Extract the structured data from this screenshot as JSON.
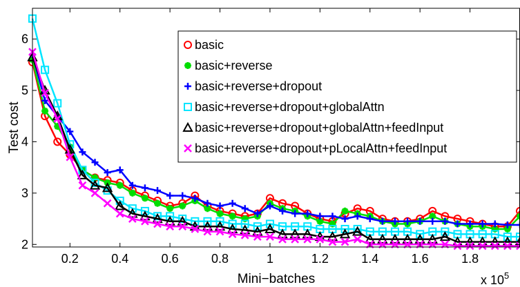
{
  "chart_data": {
    "type": "line",
    "xlabel": "Mini−batches",
    "ylabel": "Test cost",
    "x_multiplier_label": "x 10",
    "x_multiplier_exp": "5",
    "xlim": [
      0.05,
      2.0
    ],
    "ylim": [
      1.95,
      6.6
    ],
    "xticks": [
      0.2,
      0.4,
      0.6,
      0.8,
      1.0,
      1.2,
      1.4,
      1.6,
      1.8
    ],
    "xtick_labels": [
      "0.2",
      "0.4",
      "0.6",
      "0.8",
      "1",
      "1.2",
      "1.4",
      "1.6",
      "1.8"
    ],
    "yticks": [
      2,
      3,
      4,
      5,
      6
    ],
    "ytick_labels": [
      "2",
      "3",
      "4",
      "5",
      "6"
    ],
    "legend_position": "top-right",
    "series": [
      {
        "name": "basic",
        "color": "#ff0000",
        "marker": "circle",
        "x": [
          0.05,
          0.1,
          0.15,
          0.2,
          0.25,
          0.3,
          0.35,
          0.4,
          0.45,
          0.5,
          0.55,
          0.6,
          0.65,
          0.7,
          0.75,
          0.8,
          0.85,
          0.9,
          0.95,
          1.0,
          1.05,
          1.1,
          1.15,
          1.2,
          1.25,
          1.3,
          1.35,
          1.4,
          1.45,
          1.5,
          1.55,
          1.6,
          1.65,
          1.7,
          1.75,
          1.8,
          1.85,
          1.9,
          1.95,
          2.0
        ],
        "y": [
          5.55,
          4.5,
          4.0,
          3.75,
          3.45,
          3.3,
          3.25,
          3.2,
          3.05,
          2.95,
          2.85,
          2.75,
          2.8,
          2.95,
          2.75,
          2.65,
          2.6,
          2.55,
          2.6,
          2.9,
          2.8,
          2.75,
          2.6,
          2.5,
          2.45,
          2.6,
          2.7,
          2.65,
          2.5,
          2.45,
          2.45,
          2.5,
          2.65,
          2.55,
          2.5,
          2.45,
          2.4,
          2.35,
          2.35,
          2.65
        ]
      },
      {
        "name": "basic+reverse",
        "color": "#00dd00",
        "marker": "star",
        "x": [
          0.05,
          0.1,
          0.15,
          0.2,
          0.25,
          0.3,
          0.35,
          0.4,
          0.45,
          0.5,
          0.55,
          0.6,
          0.65,
          0.7,
          0.75,
          0.8,
          0.85,
          0.9,
          0.95,
          1.0,
          1.05,
          1.1,
          1.15,
          1.2,
          1.25,
          1.3,
          1.35,
          1.4,
          1.45,
          1.5,
          1.55,
          1.6,
          1.65,
          1.7,
          1.75,
          1.8,
          1.85,
          1.9,
          1.95,
          2.0
        ],
        "y": [
          5.6,
          4.6,
          4.3,
          3.9,
          3.45,
          3.3,
          3.2,
          3.15,
          3.0,
          2.9,
          2.8,
          2.7,
          2.75,
          2.85,
          2.7,
          2.6,
          2.55,
          2.5,
          2.55,
          2.8,
          2.7,
          2.65,
          2.55,
          2.45,
          2.4,
          2.65,
          2.6,
          2.55,
          2.45,
          2.4,
          2.4,
          2.45,
          2.55,
          2.45,
          2.4,
          2.35,
          2.35,
          2.3,
          2.3,
          2.55
        ]
      },
      {
        "name": "basic+reverse+dropout",
        "color": "#0000ff",
        "marker": "plus",
        "x": [
          0.05,
          0.1,
          0.15,
          0.2,
          0.25,
          0.3,
          0.35,
          0.4,
          0.45,
          0.5,
          0.55,
          0.6,
          0.65,
          0.7,
          0.75,
          0.8,
          0.85,
          0.9,
          0.95,
          1.0,
          1.05,
          1.1,
          1.15,
          1.2,
          1.25,
          1.3,
          1.35,
          1.4,
          1.45,
          1.5,
          1.55,
          1.6,
          1.65,
          1.7,
          1.75,
          1.8,
          1.85,
          1.9,
          1.95,
          2.0
        ],
        "y": [
          5.7,
          4.8,
          4.5,
          4.2,
          3.8,
          3.6,
          3.4,
          3.45,
          3.15,
          3.1,
          3.05,
          2.95,
          2.95,
          2.9,
          2.8,
          2.75,
          2.8,
          2.7,
          2.6,
          2.75,
          2.65,
          2.6,
          2.6,
          2.55,
          2.55,
          2.5,
          2.55,
          2.5,
          2.45,
          2.45,
          2.45,
          2.45,
          2.45,
          2.45,
          2.4,
          2.4,
          2.4,
          2.4,
          2.38,
          2.38
        ]
      },
      {
        "name": "basic+reverse+dropout+globalAttn",
        "color": "#00e5ff",
        "marker": "square",
        "x": [
          0.05,
          0.1,
          0.15,
          0.2,
          0.25,
          0.3,
          0.35,
          0.4,
          0.45,
          0.5,
          0.55,
          0.6,
          0.65,
          0.7,
          0.75,
          0.8,
          0.85,
          0.9,
          0.95,
          1.0,
          1.05,
          1.1,
          1.15,
          1.2,
          1.25,
          1.3,
          1.35,
          1.4,
          1.45,
          1.5,
          1.55,
          1.6,
          1.65,
          1.7,
          1.75,
          1.8,
          1.85,
          1.9,
          1.95,
          2.0
        ],
        "y": [
          6.4,
          5.4,
          4.75,
          3.95,
          3.45,
          3.2,
          3.05,
          2.85,
          2.7,
          2.65,
          2.55,
          2.55,
          2.5,
          2.45,
          2.45,
          2.45,
          2.4,
          2.4,
          2.35,
          2.4,
          2.35,
          2.35,
          2.35,
          2.3,
          2.3,
          2.3,
          2.3,
          2.25,
          2.25,
          2.25,
          2.25,
          2.2,
          2.25,
          2.25,
          2.2,
          2.2,
          2.2,
          2.2,
          2.15,
          2.15
        ]
      },
      {
        "name": "basic+reverse+dropout+globalAttn+feedInput",
        "color": "#000000",
        "marker": "triangle",
        "x": [
          0.05,
          0.1,
          0.15,
          0.2,
          0.25,
          0.3,
          0.35,
          0.4,
          0.45,
          0.5,
          0.55,
          0.6,
          0.65,
          0.7,
          0.75,
          0.8,
          0.85,
          0.9,
          0.95,
          1.0,
          1.05,
          1.1,
          1.15,
          1.2,
          1.25,
          1.3,
          1.35,
          1.4,
          1.45,
          1.5,
          1.55,
          1.6,
          1.65,
          1.7,
          1.75,
          1.8,
          1.85,
          1.9,
          1.95,
          2.0
        ],
        "y": [
          5.65,
          5.0,
          4.5,
          3.85,
          3.35,
          3.15,
          3.1,
          2.75,
          2.6,
          2.55,
          2.5,
          2.45,
          2.45,
          2.35,
          2.35,
          2.35,
          2.3,
          2.28,
          2.25,
          2.3,
          2.2,
          2.2,
          2.2,
          2.15,
          2.15,
          2.2,
          2.25,
          2.1,
          2.1,
          2.1,
          2.1,
          2.1,
          2.1,
          2.15,
          2.05,
          2.05,
          2.05,
          2.05,
          2.05,
          2.05
        ]
      },
      {
        "name": "basic+reverse+dropout+pLocalAttn+feedInput",
        "color": "#ff00ff",
        "marker": "x",
        "x": [
          0.05,
          0.1,
          0.15,
          0.2,
          0.25,
          0.3,
          0.35,
          0.4,
          0.45,
          0.5,
          0.55,
          0.6,
          0.65,
          0.7,
          0.75,
          0.8,
          0.85,
          0.9,
          0.95,
          1.0,
          1.05,
          1.1,
          1.15,
          1.2,
          1.25,
          1.3,
          1.35,
          1.4,
          1.45,
          1.5,
          1.55,
          1.6,
          1.65,
          1.7,
          1.75,
          1.8,
          1.85,
          1.9,
          1.95,
          2.0
        ],
        "y": [
          5.75,
          4.95,
          4.45,
          3.7,
          3.15,
          3.0,
          2.8,
          2.6,
          2.5,
          2.45,
          2.4,
          2.35,
          2.35,
          2.3,
          2.25,
          2.25,
          2.2,
          2.18,
          2.15,
          2.15,
          2.1,
          2.1,
          2.1,
          2.1,
          2.05,
          2.05,
          2.1,
          2.0,
          2.0,
          2.0,
          2.0,
          2.0,
          2.0,
          2.0,
          1.97,
          1.97,
          1.97,
          1.97,
          1.97,
          1.97
        ]
      }
    ]
  }
}
